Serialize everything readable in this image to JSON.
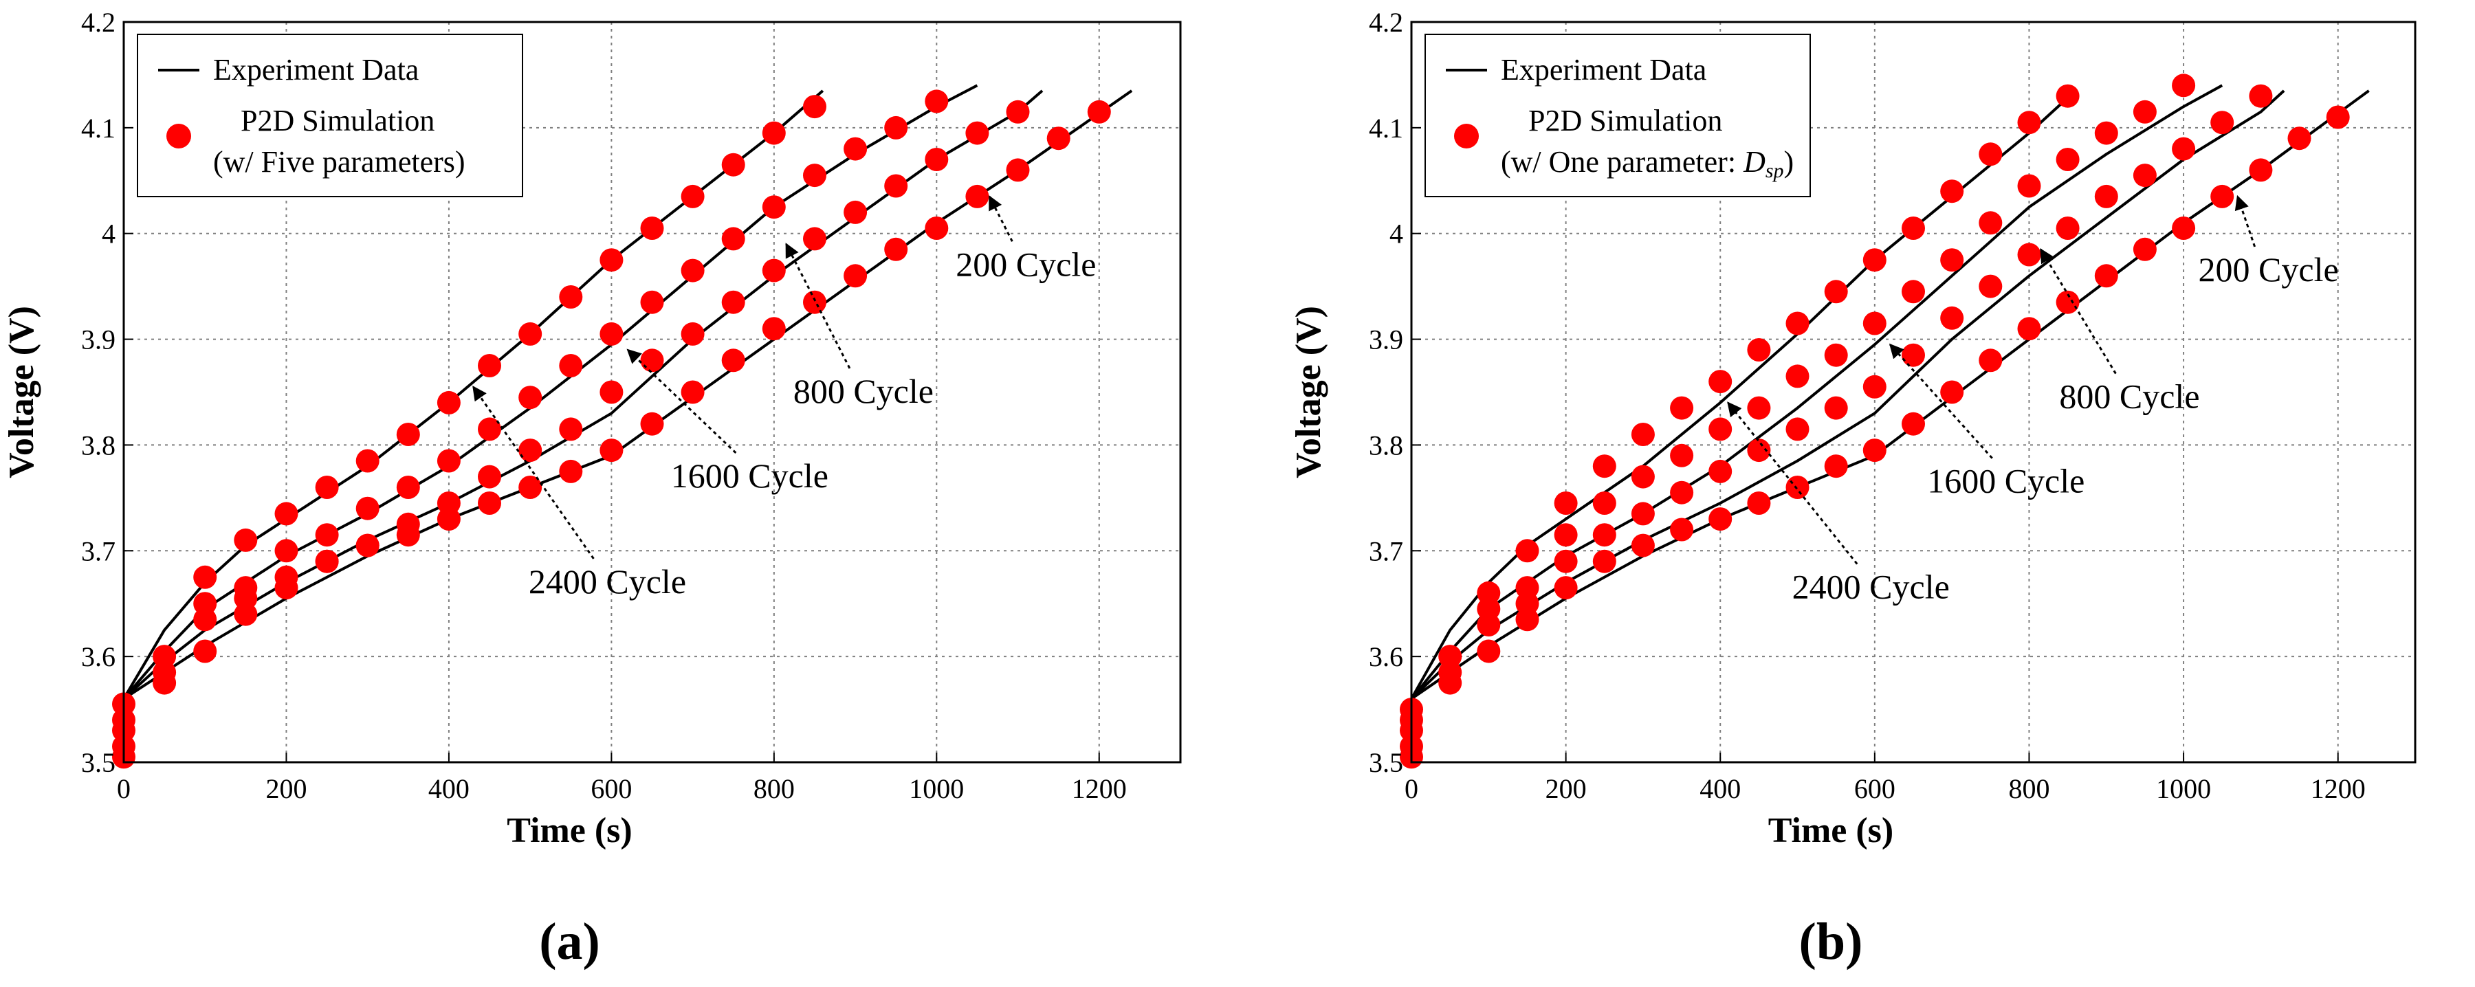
{
  "colors": {
    "experiment_line": "#000000",
    "simulation_marker": "#ff0000",
    "grid": "#7f7f7f",
    "axes": "#000000"
  },
  "chart_data": [
    {
      "type": "line",
      "panel_label": "a",
      "xlabel": "Time (s)",
      "ylabel": "Voltage (V)",
      "xlim": [
        0,
        1300
      ],
      "ylim": [
        3.5,
        4.2
      ],
      "xticks": [
        "0",
        "200",
        "400",
        "600",
        "800",
        "1000",
        "1200"
      ],
      "yticks": [
        "3.5",
        "3.6",
        "3.7",
        "3.8",
        "3.9",
        "4",
        "4.1",
        "4.2"
      ],
      "grid": true,
      "legend": {
        "position": "top-left",
        "line_label": "Experiment Data",
        "marker_label": "P2D Simulation",
        "marker_sublabel": "(w/ Five parameters)"
      },
      "annotations": [
        {
          "text": "200 Cycle",
          "text_at": [
            1110,
            3.96
          ],
          "arrow_to": [
            1065,
            4.035
          ]
        },
        {
          "text": "800 Cycle",
          "text_at": [
            910,
            3.84
          ],
          "arrow_to": [
            815,
            3.99
          ]
        },
        {
          "text": "1600 Cycle",
          "text_at": [
            770,
            3.76
          ],
          "arrow_to": [
            620,
            3.89
          ]
        },
        {
          "text": "2400 Cycle",
          "text_at": [
            595,
            3.66
          ],
          "arrow_to": [
            430,
            3.855
          ]
        }
      ],
      "series": [
        {
          "name": "200 Cycle",
          "experiment": {
            "x": [
              0,
              50,
              100,
              200,
              300,
              400,
              500,
              600,
              700,
              800,
              900,
              1000,
              1100,
              1240
            ],
            "y": [
              3.56,
              3.585,
              3.61,
              3.655,
              3.695,
              3.73,
              3.76,
              3.79,
              3.845,
              3.9,
              3.955,
              4.01,
              4.06,
              4.135
            ]
          },
          "simulation": {
            "x": [
              0,
              0,
              0,
              0,
              0,
              50,
              50,
              50,
              100,
              150,
              200,
              250,
              300,
              350,
              400,
              450,
              500,
              550,
              600,
              650,
              700,
              750,
              800,
              850,
              900,
              950,
              1000,
              1050,
              1100,
              1150,
              1200
            ],
            "y": [
              3.555,
              3.54,
              3.53,
              3.515,
              3.505,
              3.6,
              3.585,
              3.575,
              3.605,
              3.64,
              3.665,
              3.69,
              3.705,
              3.715,
              3.73,
              3.745,
              3.76,
              3.775,
              3.795,
              3.82,
              3.85,
              3.88,
              3.91,
              3.935,
              3.96,
              3.985,
              4.005,
              4.035,
              4.06,
              4.09,
              4.115
            ]
          }
        },
        {
          "name": "800 Cycle",
          "experiment": {
            "x": [
              0,
              50,
              100,
              200,
              300,
              400,
              500,
              600,
              700,
              800,
              900,
              1000,
              1100,
              1130
            ],
            "y": [
              3.56,
              3.595,
              3.625,
              3.67,
              3.71,
              3.745,
              3.785,
              3.83,
              3.9,
              3.96,
              4.015,
              4.07,
              4.115,
              4.135
            ]
          },
          "simulation": {
            "x": [
              100,
              150,
              200,
              250,
              300,
              350,
              400,
              450,
              500,
              550,
              600,
              650,
              700,
              750,
              800,
              850,
              900,
              950,
              1000,
              1050,
              1100
            ],
            "y": [
              3.635,
              3.655,
              3.675,
              3.69,
              3.705,
              3.725,
              3.745,
              3.77,
              3.795,
              3.815,
              3.85,
              3.88,
              3.905,
              3.935,
              3.965,
              3.995,
              4.02,
              4.045,
              4.07,
              4.095,
              4.115
            ]
          }
        },
        {
          "name": "1600 Cycle",
          "experiment": {
            "x": [
              0,
              50,
              100,
              200,
              300,
              400,
              500,
              600,
              700,
              800,
              900,
              1000,
              1050
            ],
            "y": [
              3.56,
              3.605,
              3.645,
              3.695,
              3.735,
              3.78,
              3.835,
              3.895,
              3.96,
              4.025,
              4.075,
              4.12,
              4.14
            ]
          },
          "simulation": {
            "x": [
              100,
              150,
              200,
              250,
              300,
              350,
              400,
              450,
              500,
              550,
              600,
              650,
              700,
              750,
              800,
              850,
              900,
              950,
              1000
            ],
            "y": [
              3.65,
              3.665,
              3.7,
              3.715,
              3.74,
              3.76,
              3.785,
              3.815,
              3.845,
              3.875,
              3.905,
              3.935,
              3.965,
              3.995,
              4.025,
              4.055,
              4.08,
              4.1,
              4.125
            ]
          }
        },
        {
          "name": "2400 Cycle",
          "experiment": {
            "x": [
              0,
              50,
              100,
              150,
              200,
              300,
              400,
              500,
              600,
              700,
              800,
              860
            ],
            "y": [
              3.56,
              3.625,
              3.67,
              3.705,
              3.73,
              3.78,
              3.84,
              3.905,
              3.975,
              4.035,
              4.095,
              4.135
            ]
          },
          "simulation": {
            "x": [
              100,
              150,
              200,
              250,
              300,
              350,
              400,
              450,
              500,
              550,
              600,
              650,
              700,
              750,
              800,
              850
            ],
            "y": [
              3.675,
              3.71,
              3.735,
              3.76,
              3.785,
              3.81,
              3.84,
              3.875,
              3.905,
              3.94,
              3.975,
              4.005,
              4.035,
              4.065,
              4.095,
              4.12
            ]
          }
        }
      ]
    },
    {
      "type": "line",
      "panel_label": "b",
      "xlabel": "Time (s)",
      "ylabel": "Voltage (V)",
      "xlim": [
        0,
        1300
      ],
      "ylim": [
        3.5,
        4.2
      ],
      "xticks": [
        "0",
        "200",
        "400",
        "600",
        "800",
        "1000",
        "1200"
      ],
      "yticks": [
        "3.5",
        "3.6",
        "3.7",
        "3.8",
        "3.9",
        "4",
        "4.1",
        "4.2"
      ],
      "grid": true,
      "legend": {
        "position": "top-left",
        "line_label": "Experiment Data",
        "marker_label": "P2D Simulation",
        "marker_sublabel": "(w/ One parameter: ",
        "marker_sublabel_symbol": "D",
        "marker_sublabel_subscript": "sp",
        "marker_sublabel_close": ")"
      },
      "annotations": [
        {
          "text": "200 Cycle",
          "text_at": [
            1110,
            3.955
          ],
          "arrow_to": [
            1070,
            4.035
          ]
        },
        {
          "text": "800 Cycle",
          "text_at": [
            930,
            3.835
          ],
          "arrow_to": [
            815,
            3.985
          ]
        },
        {
          "text": "1600 Cycle",
          "text_at": [
            770,
            3.755
          ],
          "arrow_to": [
            620,
            3.895
          ]
        },
        {
          "text": "2400 Cycle",
          "text_at": [
            595,
            3.655
          ],
          "arrow_to": [
            410,
            3.84
          ]
        }
      ],
      "series": [
        {
          "name": "200 Cycle",
          "experiment": {
            "x": [
              0,
              50,
              100,
              200,
              300,
              400,
              500,
              600,
              700,
              800,
              900,
              1000,
              1100,
              1240
            ],
            "y": [
              3.56,
              3.585,
              3.61,
              3.655,
              3.695,
              3.73,
              3.76,
              3.79,
              3.845,
              3.9,
              3.955,
              4.01,
              4.06,
              4.135
            ]
          },
          "simulation": {
            "x": [
              0,
              0,
              0,
              0,
              0,
              50,
              50,
              50,
              100,
              150,
              200,
              250,
              300,
              350,
              400,
              450,
              500,
              550,
              600,
              650,
              700,
              750,
              800,
              850,
              900,
              950,
              1000,
              1050,
              1100,
              1150,
              1200
            ],
            "y": [
              3.55,
              3.54,
              3.53,
              3.515,
              3.505,
              3.6,
              3.585,
              3.575,
              3.605,
              3.635,
              3.665,
              3.69,
              3.705,
              3.72,
              3.73,
              3.745,
              3.76,
              3.78,
              3.795,
              3.82,
              3.85,
              3.88,
              3.91,
              3.935,
              3.96,
              3.985,
              4.005,
              4.035,
              4.06,
              4.09,
              4.11
            ]
          }
        },
        {
          "name": "800 Cycle",
          "experiment": {
            "x": [
              0,
              50,
              100,
              200,
              300,
              400,
              500,
              600,
              700,
              800,
              900,
              1000,
              1100,
              1130
            ],
            "y": [
              3.56,
              3.595,
              3.625,
              3.67,
              3.71,
              3.745,
              3.785,
              3.83,
              3.9,
              3.96,
              4.015,
              4.07,
              4.115,
              4.135
            ]
          },
          "simulation": {
            "x": [
              100,
              150,
              200,
              250,
              300,
              350,
              400,
              450,
              500,
              550,
              600,
              650,
              700,
              750,
              800,
              850,
              900,
              950,
              1000,
              1050,
              1100
            ],
            "y": [
              3.63,
              3.65,
              3.69,
              3.715,
              3.735,
              3.755,
              3.775,
              3.795,
              3.815,
              3.835,
              3.855,
              3.885,
              3.92,
              3.95,
              3.98,
              4.005,
              4.035,
              4.055,
              4.08,
              4.105,
              4.13
            ]
          }
        },
        {
          "name": "1600 Cycle",
          "experiment": {
            "x": [
              0,
              50,
              100,
              200,
              300,
              400,
              500,
              600,
              700,
              800,
              900,
              1000,
              1050
            ],
            "y": [
              3.56,
              3.605,
              3.645,
              3.695,
              3.735,
              3.78,
              3.835,
              3.895,
              3.96,
              4.025,
              4.075,
              4.12,
              4.14
            ]
          },
          "simulation": {
            "x": [
              100,
              150,
              200,
              250,
              300,
              350,
              400,
              450,
              500,
              550,
              600,
              650,
              700,
              750,
              800,
              850,
              900,
              950,
              1000
            ],
            "y": [
              3.645,
              3.665,
              3.715,
              3.745,
              3.77,
              3.79,
              3.815,
              3.835,
              3.865,
              3.885,
              3.915,
              3.945,
              3.975,
              4.01,
              4.045,
              4.07,
              4.095,
              4.115,
              4.14
            ]
          }
        },
        {
          "name": "2400 Cycle",
          "experiment": {
            "x": [
              0,
              50,
              100,
              150,
              200,
              300,
              400,
              500,
              600,
              700,
              800,
              860
            ],
            "y": [
              3.56,
              3.625,
              3.67,
              3.705,
              3.73,
              3.78,
              3.84,
              3.905,
              3.975,
              4.035,
              4.095,
              4.135
            ]
          },
          "simulation": {
            "x": [
              100,
              150,
              200,
              250,
              300,
              350,
              400,
              450,
              500,
              550,
              600,
              650,
              700,
              750,
              800,
              850
            ],
            "y": [
              3.66,
              3.7,
              3.745,
              3.78,
              3.81,
              3.835,
              3.86,
              3.89,
              3.915,
              3.945,
              3.975,
              4.005,
              4.04,
              4.075,
              4.105,
              4.13
            ]
          }
        }
      ]
    }
  ]
}
